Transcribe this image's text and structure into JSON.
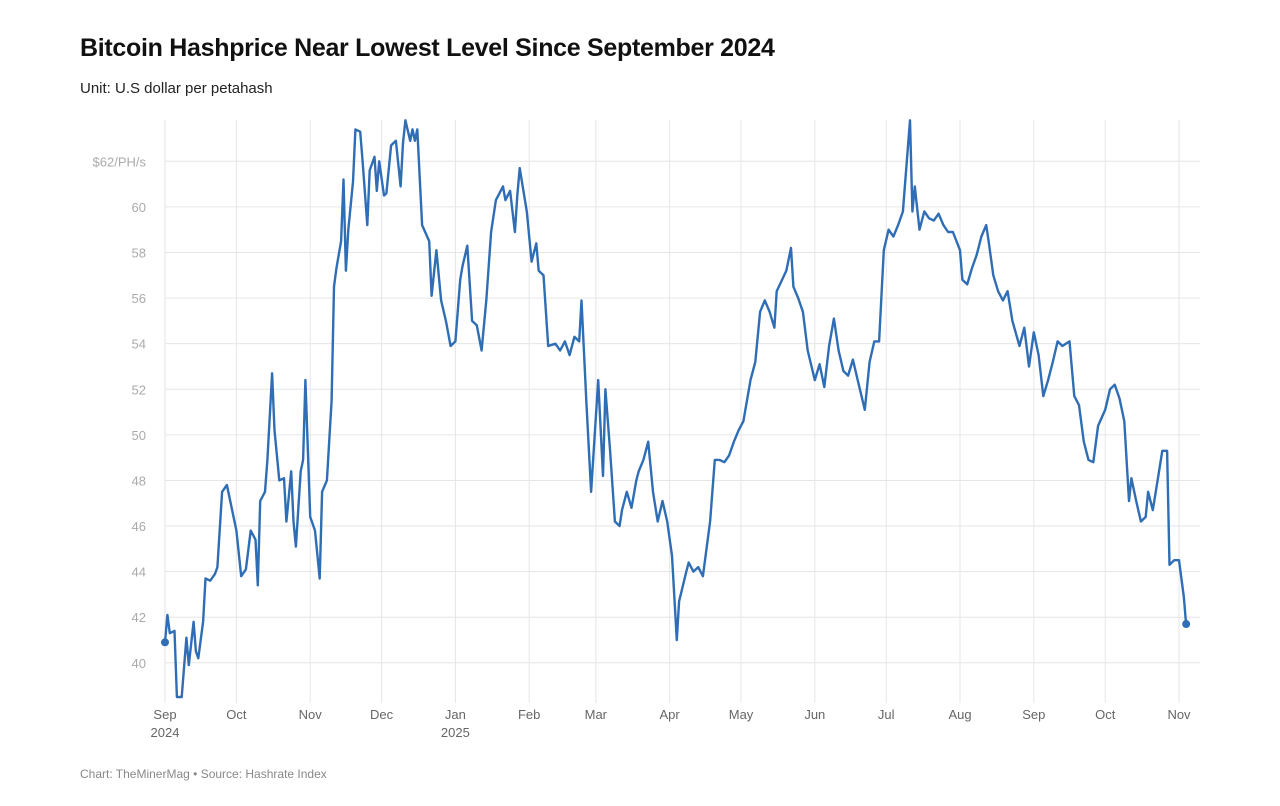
{
  "title": "Bitcoin Hashprice Near Lowest Level Since September 2024",
  "subtitle": "Unit: U.S dollar per petahash",
  "footer": "Chart: TheMinerMag • Source: Hashrate Index",
  "colors": {
    "line": "#2f6db5",
    "grid": "#e6e6e6"
  },
  "chart_data": {
    "type": "line",
    "title": "Bitcoin Hashprice Near Lowest Level Since September 2024",
    "subtitle": "Unit: U.S dollar per petahash",
    "ylim": [
      38.5,
      63.9
    ],
    "xlim": [
      "2024-09-01",
      "2025-11-09"
    ],
    "grid": true,
    "yticks": [
      {
        "value": 40,
        "label": "40"
      },
      {
        "value": 42,
        "label": "42"
      },
      {
        "value": 44,
        "label": "44"
      },
      {
        "value": 46,
        "label": "46"
      },
      {
        "value": 48,
        "label": "48"
      },
      {
        "value": 50,
        "label": "50"
      },
      {
        "value": 52,
        "label": "52"
      },
      {
        "value": 54,
        "label": "54"
      },
      {
        "value": 56,
        "label": "56"
      },
      {
        "value": 58,
        "label": "58"
      },
      {
        "value": 60,
        "label": "60"
      },
      {
        "value": 62,
        "label": "$62/PH/s"
      }
    ],
    "xticks": [
      {
        "date": "2024-09-01",
        "label": "Sep",
        "sub": "2024"
      },
      {
        "date": "2024-10-01",
        "label": "Oct",
        "sub": ""
      },
      {
        "date": "2024-11-01",
        "label": "Nov",
        "sub": ""
      },
      {
        "date": "2024-12-01",
        "label": "Dec",
        "sub": ""
      },
      {
        "date": "2025-01-01",
        "label": "Jan",
        "sub": "2025"
      },
      {
        "date": "2025-02-01",
        "label": "Feb",
        "sub": ""
      },
      {
        "date": "2025-03-01",
        "label": "Mar",
        "sub": ""
      },
      {
        "date": "2025-04-01",
        "label": "Apr",
        "sub": ""
      },
      {
        "date": "2025-05-01",
        "label": "May",
        "sub": ""
      },
      {
        "date": "2025-06-01",
        "label": "Jun",
        "sub": ""
      },
      {
        "date": "2025-07-01",
        "label": "Jul",
        "sub": ""
      },
      {
        "date": "2025-08-01",
        "label": "Aug",
        "sub": ""
      },
      {
        "date": "2025-09-01",
        "label": "Sep",
        "sub": ""
      },
      {
        "date": "2025-10-01",
        "label": "Oct",
        "sub": ""
      },
      {
        "date": "2025-11-01",
        "label": "Nov",
        "sub": ""
      }
    ],
    "series": [
      {
        "points": [
          [
            "2024-09-01",
            40.9
          ],
          [
            "2024-09-02",
            42.1
          ],
          [
            "2024-09-03",
            41.3
          ],
          [
            "2024-09-05",
            41.4
          ],
          [
            "2024-09-06",
            38.5
          ],
          [
            "2024-09-08",
            38.5
          ],
          [
            "2024-09-10",
            41.1
          ],
          [
            "2024-09-11",
            39.9
          ],
          [
            "2024-09-13",
            41.8
          ],
          [
            "2024-09-14",
            40.5
          ],
          [
            "2024-09-15",
            40.2
          ],
          [
            "2024-09-17",
            41.8
          ],
          [
            "2024-09-18",
            43.7
          ],
          [
            "2024-09-20",
            43.6
          ],
          [
            "2024-09-22",
            43.9
          ],
          [
            "2024-09-23",
            44.2
          ],
          [
            "2024-09-25",
            47.5
          ],
          [
            "2024-09-27",
            47.8
          ],
          [
            "2024-10-01",
            45.8
          ],
          [
            "2024-10-03",
            43.8
          ],
          [
            "2024-10-05",
            44.1
          ],
          [
            "2024-10-07",
            45.8
          ],
          [
            "2024-10-09",
            45.4
          ],
          [
            "2024-10-10",
            43.4
          ],
          [
            "2024-10-11",
            47.1
          ],
          [
            "2024-10-13",
            47.5
          ],
          [
            "2024-10-14",
            48.9
          ],
          [
            "2024-10-16",
            52.7
          ],
          [
            "2024-10-17",
            50.2
          ],
          [
            "2024-10-19",
            48.0
          ],
          [
            "2024-10-21",
            48.1
          ],
          [
            "2024-10-22",
            46.2
          ],
          [
            "2024-10-24",
            48.4
          ],
          [
            "2024-10-25",
            46.2
          ],
          [
            "2024-10-26",
            45.1
          ],
          [
            "2024-10-28",
            48.4
          ],
          [
            "2024-10-29",
            48.9
          ],
          [
            "2024-10-30",
            52.4
          ],
          [
            "2024-11-01",
            46.4
          ],
          [
            "2024-11-03",
            45.8
          ],
          [
            "2024-11-05",
            43.7
          ],
          [
            "2024-11-06",
            47.5
          ],
          [
            "2024-11-08",
            48.0
          ],
          [
            "2024-11-10",
            51.5
          ],
          [
            "2024-11-11",
            56.5
          ],
          [
            "2024-11-12",
            57.3
          ],
          [
            "2024-11-14",
            58.5
          ],
          [
            "2024-11-15",
            61.2
          ],
          [
            "2024-11-16",
            57.2
          ],
          [
            "2024-11-17",
            59.0
          ],
          [
            "2024-11-19",
            61.1
          ],
          [
            "2024-11-20",
            63.4
          ],
          [
            "2024-11-22",
            63.3
          ],
          [
            "2024-11-23",
            62.0
          ],
          [
            "2024-11-25",
            59.2
          ],
          [
            "2024-11-26",
            61.6
          ],
          [
            "2024-11-28",
            62.2
          ],
          [
            "2024-11-29",
            60.7
          ],
          [
            "2024-11-30",
            62.0
          ],
          [
            "2024-12-02",
            60.5
          ],
          [
            "2024-12-03",
            60.6
          ],
          [
            "2024-12-05",
            62.7
          ],
          [
            "2024-12-07",
            62.9
          ],
          [
            "2024-12-09",
            60.9
          ],
          [
            "2024-12-10",
            62.8
          ],
          [
            "2024-12-11",
            63.8
          ],
          [
            "2024-12-13",
            62.9
          ],
          [
            "2024-12-14",
            63.4
          ],
          [
            "2024-12-15",
            62.9
          ],
          [
            "2024-12-16",
            63.4
          ],
          [
            "2024-12-18",
            59.2
          ],
          [
            "2024-12-21",
            58.5
          ],
          [
            "2024-12-22",
            56.1
          ],
          [
            "2024-12-24",
            58.1
          ],
          [
            "2024-12-26",
            55.9
          ],
          [
            "2024-12-28",
            55.0
          ],
          [
            "2024-12-30",
            53.9
          ],
          [
            "2025-01-01",
            54.1
          ],
          [
            "2025-01-03",
            56.8
          ],
          [
            "2025-01-04",
            57.4
          ],
          [
            "2025-01-06",
            58.3
          ],
          [
            "2025-01-08",
            55.0
          ],
          [
            "2025-01-10",
            54.8
          ],
          [
            "2025-01-12",
            53.7
          ],
          [
            "2025-01-14",
            55.9
          ],
          [
            "2025-01-16",
            58.9
          ],
          [
            "2025-01-18",
            60.3
          ],
          [
            "2025-01-21",
            60.9
          ],
          [
            "2025-01-22",
            60.3
          ],
          [
            "2025-01-24",
            60.7
          ],
          [
            "2025-01-26",
            58.9
          ],
          [
            "2025-01-27",
            60.5
          ],
          [
            "2025-01-28",
            61.7
          ],
          [
            "2025-01-31",
            59.8
          ],
          [
            "2025-02-02",
            57.6
          ],
          [
            "2025-02-04",
            58.4
          ],
          [
            "2025-02-05",
            57.2
          ],
          [
            "2025-02-07",
            57.0
          ],
          [
            "2025-02-09",
            53.9
          ],
          [
            "2025-02-12",
            54.0
          ],
          [
            "2025-02-14",
            53.7
          ],
          [
            "2025-02-16",
            54.1
          ],
          [
            "2025-02-18",
            53.5
          ],
          [
            "2025-02-20",
            54.3
          ],
          [
            "2025-02-22",
            54.1
          ],
          [
            "2025-02-23",
            55.9
          ],
          [
            "2025-02-25",
            51.5
          ],
          [
            "2025-02-27",
            47.5
          ],
          [
            "2025-03-02",
            52.4
          ],
          [
            "2025-03-04",
            48.2
          ],
          [
            "2025-03-05",
            52.0
          ],
          [
            "2025-03-07",
            49.3
          ],
          [
            "2025-03-09",
            46.2
          ],
          [
            "2025-03-11",
            46.0
          ],
          [
            "2025-03-12",
            46.7
          ],
          [
            "2025-03-14",
            47.5
          ],
          [
            "2025-03-16",
            46.8
          ],
          [
            "2025-03-18",
            48.0
          ],
          [
            "2025-03-19",
            48.4
          ],
          [
            "2025-03-21",
            48.9
          ],
          [
            "2025-03-23",
            49.7
          ],
          [
            "2025-03-25",
            47.5
          ],
          [
            "2025-03-27",
            46.2
          ],
          [
            "2025-03-29",
            47.1
          ],
          [
            "2025-03-31",
            46.2
          ],
          [
            "2025-04-02",
            44.7
          ],
          [
            "2025-04-04",
            41.0
          ],
          [
            "2025-04-05",
            42.7
          ],
          [
            "2025-04-08",
            44.0
          ],
          [
            "2025-04-09",
            44.4
          ],
          [
            "2025-04-11",
            44.0
          ],
          [
            "2025-04-13",
            44.2
          ],
          [
            "2025-04-15",
            43.8
          ],
          [
            "2025-04-18",
            46.2
          ],
          [
            "2025-04-20",
            48.9
          ],
          [
            "2025-04-22",
            48.9
          ],
          [
            "2025-04-24",
            48.8
          ],
          [
            "2025-04-26",
            49.1
          ],
          [
            "2025-04-28",
            49.7
          ],
          [
            "2025-04-30",
            50.2
          ],
          [
            "2025-05-02",
            50.6
          ],
          [
            "2025-05-05",
            52.4
          ],
          [
            "2025-05-07",
            53.2
          ],
          [
            "2025-05-09",
            55.4
          ],
          [
            "2025-05-11",
            55.9
          ],
          [
            "2025-05-13",
            55.4
          ],
          [
            "2025-05-15",
            54.7
          ],
          [
            "2025-05-16",
            56.3
          ],
          [
            "2025-05-20",
            57.2
          ],
          [
            "2025-05-22",
            58.2
          ],
          [
            "2025-05-23",
            56.5
          ],
          [
            "2025-05-25",
            56.0
          ],
          [
            "2025-05-27",
            55.4
          ],
          [
            "2025-05-29",
            53.7
          ],
          [
            "2025-06-01",
            52.4
          ],
          [
            "2025-06-03",
            53.1
          ],
          [
            "2025-06-05",
            52.1
          ],
          [
            "2025-06-07",
            53.9
          ],
          [
            "2025-06-09",
            55.1
          ],
          [
            "2025-06-11",
            53.7
          ],
          [
            "2025-06-13",
            52.8
          ],
          [
            "2025-06-15",
            52.6
          ],
          [
            "2025-06-17",
            53.3
          ],
          [
            "2025-06-19",
            52.4
          ],
          [
            "2025-06-22",
            51.1
          ],
          [
            "2025-06-24",
            53.2
          ],
          [
            "2025-06-26",
            54.1
          ],
          [
            "2025-06-28",
            54.1
          ],
          [
            "2025-06-30",
            58.1
          ],
          [
            "2025-07-02",
            59.0
          ],
          [
            "2025-07-04",
            58.7
          ],
          [
            "2025-07-06",
            59.2
          ],
          [
            "2025-07-08",
            59.8
          ],
          [
            "2025-07-11",
            63.8
          ],
          [
            "2025-07-12",
            59.8
          ],
          [
            "2025-07-13",
            60.9
          ],
          [
            "2025-07-15",
            59.0
          ],
          [
            "2025-07-17",
            59.8
          ],
          [
            "2025-07-19",
            59.5
          ],
          [
            "2025-07-21",
            59.4
          ],
          [
            "2025-07-23",
            59.7
          ],
          [
            "2025-07-25",
            59.2
          ],
          [
            "2025-07-27",
            58.9
          ],
          [
            "2025-07-29",
            58.9
          ],
          [
            "2025-08-01",
            58.1
          ],
          [
            "2025-08-02",
            56.8
          ],
          [
            "2025-08-04",
            56.6
          ],
          [
            "2025-08-06",
            57.3
          ],
          [
            "2025-08-08",
            57.9
          ],
          [
            "2025-08-10",
            58.7
          ],
          [
            "2025-08-12",
            59.2
          ],
          [
            "2025-08-13",
            58.5
          ],
          [
            "2025-08-15",
            57.0
          ],
          [
            "2025-08-17",
            56.3
          ],
          [
            "2025-08-19",
            55.9
          ],
          [
            "2025-08-21",
            56.3
          ],
          [
            "2025-08-23",
            55.0
          ],
          [
            "2025-08-26",
            53.9
          ],
          [
            "2025-08-28",
            54.7
          ],
          [
            "2025-08-30",
            53.0
          ],
          [
            "2025-09-01",
            54.5
          ],
          [
            "2025-09-03",
            53.5
          ],
          [
            "2025-09-05",
            51.7
          ],
          [
            "2025-09-07",
            52.4
          ],
          [
            "2025-09-09",
            53.2
          ],
          [
            "2025-09-11",
            54.1
          ],
          [
            "2025-09-13",
            53.9
          ],
          [
            "2025-09-16",
            54.1
          ],
          [
            "2025-09-18",
            51.7
          ],
          [
            "2025-09-20",
            51.3
          ],
          [
            "2025-09-22",
            49.7
          ],
          [
            "2025-09-24",
            48.9
          ],
          [
            "2025-09-26",
            48.8
          ],
          [
            "2025-09-28",
            50.4
          ],
          [
            "2025-10-01",
            51.1
          ],
          [
            "2025-10-03",
            52.0
          ],
          [
            "2025-10-05",
            52.2
          ],
          [
            "2025-10-07",
            51.6
          ],
          [
            "2025-10-09",
            50.6
          ],
          [
            "2025-10-11",
            47.1
          ],
          [
            "2025-10-12",
            48.1
          ],
          [
            "2025-10-14",
            47.1
          ],
          [
            "2025-10-16",
            46.2
          ],
          [
            "2025-10-18",
            46.4
          ],
          [
            "2025-10-19",
            47.5
          ],
          [
            "2025-10-21",
            46.7
          ],
          [
            "2025-10-23",
            48.0
          ],
          [
            "2025-10-25",
            49.3
          ],
          [
            "2025-10-27",
            49.3
          ],
          [
            "2025-10-28",
            44.3
          ],
          [
            "2025-10-30",
            44.5
          ],
          [
            "2025-11-01",
            44.5
          ],
          [
            "2025-11-03",
            42.9
          ],
          [
            "2025-11-04",
            41.7
          ]
        ]
      }
    ]
  }
}
